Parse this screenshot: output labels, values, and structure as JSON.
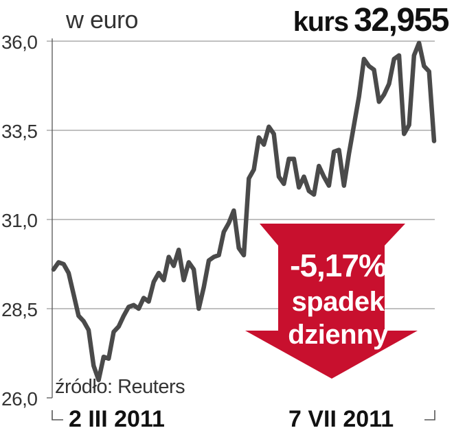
{
  "header": {
    "unit_label": "w euro",
    "kurs_label": "kurs",
    "kurs_value": "32,955"
  },
  "badge": {
    "percent": "-5,17%",
    "line1": "spadek",
    "line2": "dzienny"
  },
  "source": "źródło: Reuters",
  "colors": {
    "line": "#4a4a4a",
    "grid": "#9a9a9a",
    "badge": "#c8102e"
  },
  "chart_data": {
    "type": "line",
    "y_tick_labels": [
      "26,0",
      "28,5",
      "31,0",
      "33,5",
      "36,0"
    ],
    "y_tick_values": [
      26.0,
      28.5,
      31.0,
      33.5,
      36.0
    ],
    "ylim": [
      26.0,
      36.0
    ],
    "x_tick_labels": [
      "2 III 2011",
      "7 VII 2011"
    ],
    "grid": "horizontal",
    "series": [
      {
        "values": [
          29.6,
          29.8,
          29.75,
          29.5,
          28.9,
          28.3,
          28.15,
          27.9,
          26.9,
          26.5,
          27.15,
          27.1,
          27.85,
          28.0,
          28.3,
          28.55,
          28.6,
          28.5,
          28.8,
          28.7,
          29.25,
          29.5,
          29.3,
          29.95,
          29.7,
          30.15,
          29.3,
          29.8,
          29.6,
          28.5,
          29.1,
          29.85,
          29.95,
          30.0,
          30.65,
          30.9,
          31.25,
          30.2,
          30.0,
          32.15,
          32.4,
          33.3,
          33.1,
          33.6,
          33.4,
          32.2,
          32.0,
          32.7,
          32.7,
          31.9,
          32.2,
          31.8,
          31.7,
          32.5,
          32.2,
          31.95,
          32.9,
          32.95,
          31.95,
          32.85,
          33.65,
          34.45,
          35.5,
          35.3,
          35.2,
          34.3,
          34.5,
          34.8,
          35.5,
          35.6,
          33.4,
          33.65,
          35.6,
          35.95,
          35.3,
          35.15,
          33.2
        ]
      }
    ]
  }
}
